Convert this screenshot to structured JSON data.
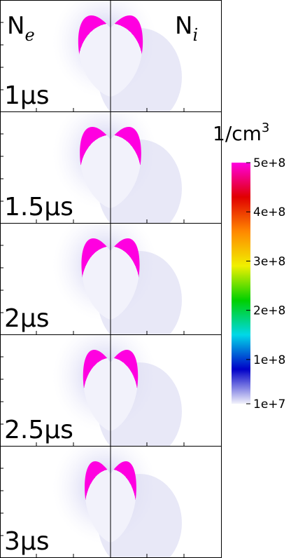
{
  "chart_data": {
    "type": "heatmap",
    "left_label": {
      "base": "N",
      "sub": "e"
    },
    "right_label": {
      "base": "N",
      "sub": "i"
    },
    "panel_labels": [
      "1μs",
      "1.5μs",
      "2μs",
      "2.5μs",
      "3μs"
    ],
    "colorbar": {
      "title": {
        "base": "1/cm",
        "sup": "3"
      },
      "lim": [
        10000000,
        500000000
      ],
      "ticks": [
        {
          "value": 10000000,
          "label": "1e+7"
        },
        {
          "value": 100000000,
          "label": "1e+8"
        },
        {
          "value": 200000000,
          "label": "2e+8"
        },
        {
          "value": 300000000,
          "label": "3e+8"
        },
        {
          "value": 400000000,
          "label": "4e+8"
        },
        {
          "value": 500000000,
          "label": "5e+8"
        }
      ],
      "colors": [
        "#f2f2fb",
        "#0000c8",
        "#00d8e8",
        "#00d000",
        "#f0f000",
        "#ff8800",
        "#e00000",
        "#ff00e0"
      ]
    }
  }
}
